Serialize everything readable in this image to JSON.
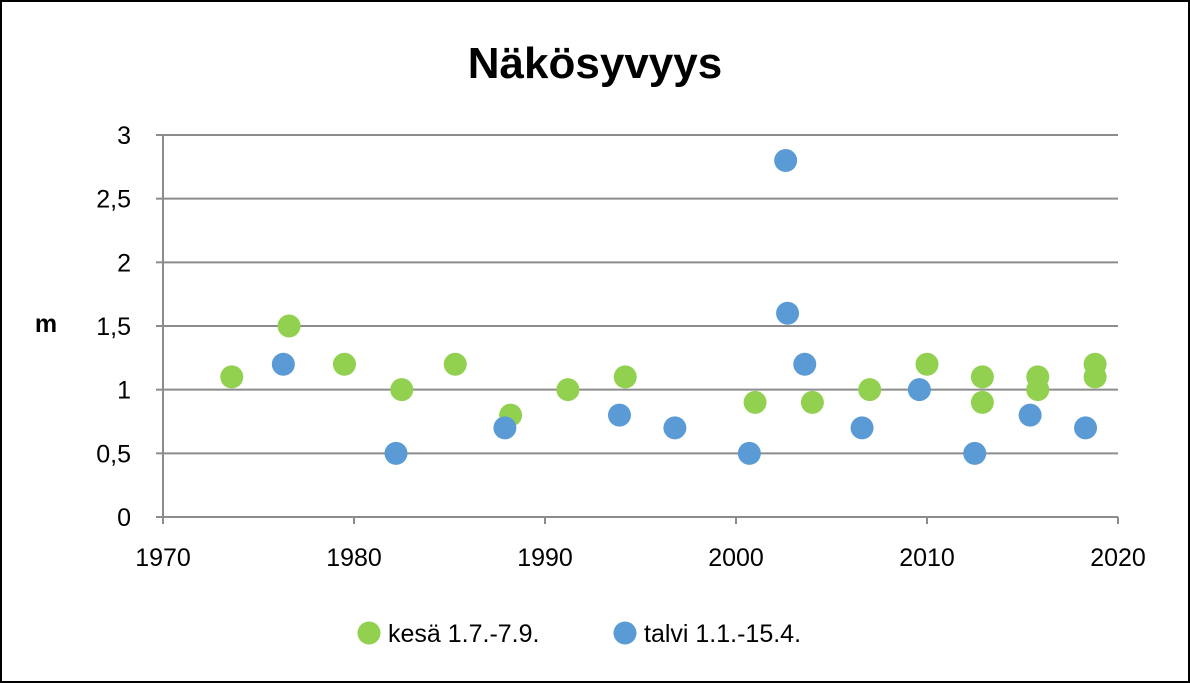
{
  "chart_data": {
    "type": "scatter",
    "title": "Näkösyvyys",
    "xlabel": "",
    "ylabel": "m",
    "xlim": [
      1970,
      2020
    ],
    "ylim": [
      0,
      3
    ],
    "x_ticks": [
      1970,
      1980,
      1990,
      2000,
      2010,
      2020
    ],
    "x_tick_labels": [
      "1970",
      "1980",
      "1990",
      "2000",
      "2010",
      "2020"
    ],
    "y_ticks": [
      0,
      0.5,
      1,
      1.5,
      2,
      2.5,
      3
    ],
    "y_tick_labels": [
      "0",
      "0,5",
      "1",
      "1,5",
      "2",
      "2,5",
      "3"
    ],
    "grid": "horizontal",
    "legend_position": "bottom",
    "series": [
      {
        "name": "kesä 1.7.-7.9.",
        "color": "#92d050",
        "points": [
          {
            "x": 1973.6,
            "y": 1.1
          },
          {
            "x": 1976.6,
            "y": 1.5
          },
          {
            "x": 1979.5,
            "y": 1.2
          },
          {
            "x": 1982.5,
            "y": 1.0
          },
          {
            "x": 1985.3,
            "y": 1.2
          },
          {
            "x": 1988.2,
            "y": 0.8
          },
          {
            "x": 1991.2,
            "y": 1.0
          },
          {
            "x": 1994.2,
            "y": 1.1
          },
          {
            "x": 2001.0,
            "y": 0.9
          },
          {
            "x": 2004.0,
            "y": 0.9
          },
          {
            "x": 2007.0,
            "y": 1.0
          },
          {
            "x": 2010.0,
            "y": 1.2
          },
          {
            "x": 2012.9,
            "y": 1.1
          },
          {
            "x": 2012.9,
            "y": 0.9
          },
          {
            "x": 2015.8,
            "y": 1.1
          },
          {
            "x": 2015.8,
            "y": 1.0
          },
          {
            "x": 2018.8,
            "y": 1.2
          },
          {
            "x": 2018.8,
            "y": 1.1
          }
        ]
      },
      {
        "name": "talvi 1.1.-15.4.",
        "color": "#5b9bd5",
        "points": [
          {
            "x": 1976.3,
            "y": 1.2
          },
          {
            "x": 1982.2,
            "y": 0.5
          },
          {
            "x": 1987.9,
            "y": 0.7
          },
          {
            "x": 1993.9,
            "y": 0.8
          },
          {
            "x": 1996.8,
            "y": 0.7
          },
          {
            "x": 2000.7,
            "y": 0.5
          },
          {
            "x": 2002.6,
            "y": 2.8
          },
          {
            "x": 2002.7,
            "y": 1.6
          },
          {
            "x": 2003.6,
            "y": 1.2
          },
          {
            "x": 2006.6,
            "y": 0.7
          },
          {
            "x": 2009.6,
            "y": 1.0
          },
          {
            "x": 2012.5,
            "y": 0.5
          },
          {
            "x": 2015.4,
            "y": 0.8
          },
          {
            "x": 2018.3,
            "y": 0.7
          }
        ]
      }
    ]
  }
}
